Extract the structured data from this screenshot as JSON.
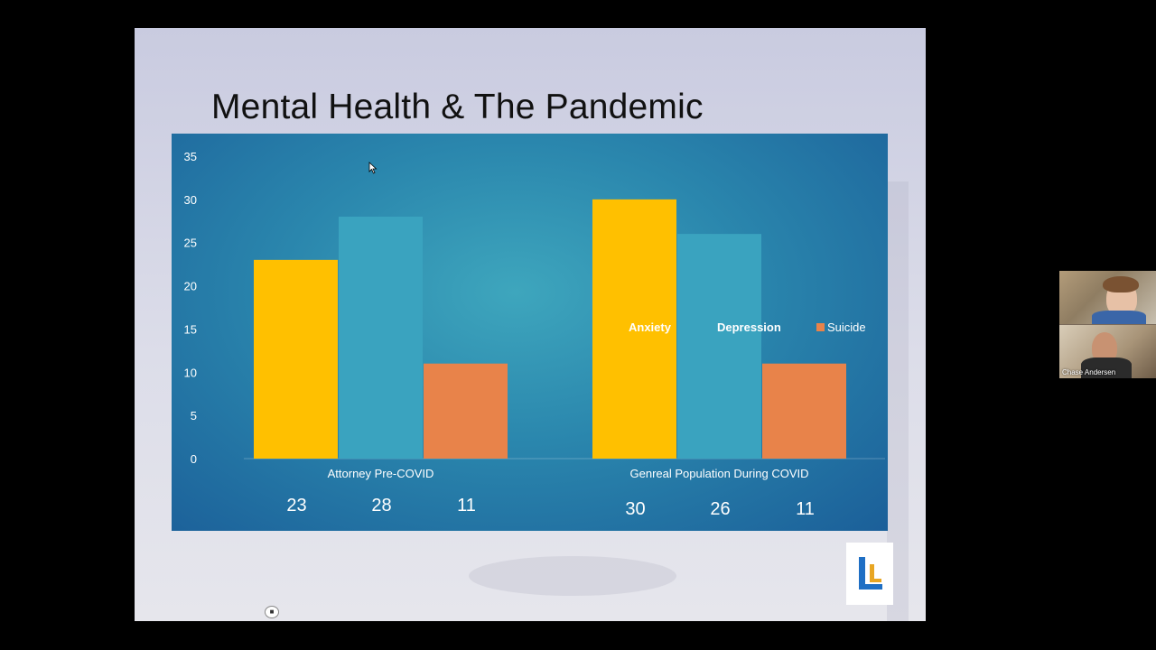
{
  "slide": {
    "title": "Mental Health & The Pandemic"
  },
  "chart_data": {
    "type": "bar",
    "categories": [
      "Attorney Pre-COVID",
      "Genreal Population During COVID"
    ],
    "series": [
      {
        "name": "Anxiety",
        "values": [
          23,
          30
        ],
        "color": "#ffc000"
      },
      {
        "name": "Depression",
        "values": [
          28,
          26
        ],
        "color": "#3aa3bf"
      },
      {
        "name": "Suicide",
        "values": [
          11,
          11
        ],
        "color": "#e8834a"
      }
    ],
    "value_labels": [
      [
        "23",
        "28",
        "11"
      ],
      [
        "30",
        "26",
        "11"
      ]
    ],
    "ylim": [
      0,
      35
    ],
    "yticks": [
      0,
      5,
      10,
      15,
      20,
      25,
      30,
      35
    ],
    "grid": false,
    "legend": "right"
  },
  "video": {
    "participant_name": "Chase Andersen"
  },
  "icons": {
    "camera": "camera-icon",
    "cursor": "mouse-pointer-icon",
    "logo": "ll-logo"
  },
  "colors": {
    "chart_background": "#2a86ad",
    "logo_blue": "#1f6fc4",
    "logo_gold": "#e8a623"
  }
}
